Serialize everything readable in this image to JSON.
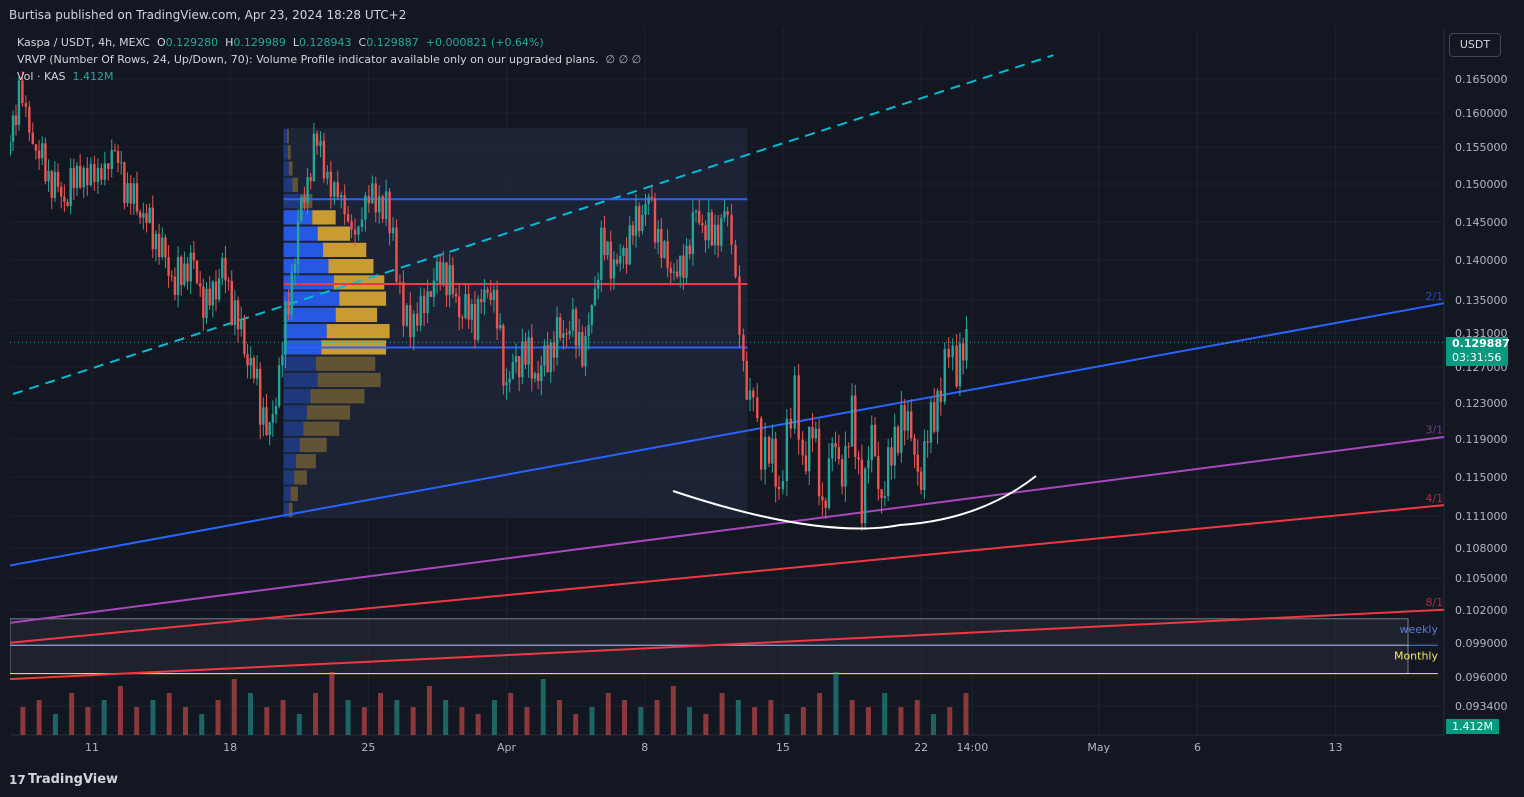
{
  "header": {
    "published": "Burtisa published on TradingView.com, Apr 23, 2024 18:28 UTC+2"
  },
  "legend": {
    "symbol": "Kaspa / USDT, 4h, MEXC",
    "o_label": "O",
    "o": "0.129280",
    "h_label": "H",
    "h": "0.129989",
    "l_label": "L",
    "l": "0.128943",
    "c_label": "C",
    "c": "0.129887",
    "change": "+0.000821 (+0.64%)",
    "vrvp": "VRVP (Number Of Rows, 24, Up/Down, 70): Volume Profile indicator available only on our upgraded plans.",
    "vrvp_values": "∅  ∅  ∅",
    "vol_label": "Vol · KAS",
    "vol_value": "1.412M"
  },
  "currency_button": "USDT",
  "current_price_tag": {
    "price": "0.129887",
    "countdown": "03:31:56"
  },
  "volume_tag": "1.412M",
  "footer": {
    "logo": "17",
    "brand": "TradingView"
  },
  "colors": {
    "background": "#131722",
    "up": "#26a69a",
    "down": "#ef5350",
    "blue_line": "#2962ff",
    "purple_line": "#ab47bc",
    "red_line": "#f23645",
    "cyan_dash": "#00bcd4",
    "vp_blue": "#2962ff",
    "vp_gold": "#e8b033"
  },
  "chart_data": {
    "type": "candlestick",
    "title": "Kaspa / USDT, 4h, MEXC",
    "ylim": [
      0.0915,
      0.1685
    ],
    "y_ticks": [
      "0.165000",
      "0.160000",
      "0.155000",
      "0.150000",
      "0.145000",
      "0.140000",
      "0.135000",
      "0.131000",
      "0.127000",
      "0.123000",
      "0.119000",
      "0.115000",
      "0.111000",
      "0.108000",
      "0.105000",
      "0.102000",
      "0.099000",
      "0.096000",
      "0.093400"
    ],
    "y_tick_values": [
      0.165,
      0.16,
      0.155,
      0.15,
      0.145,
      0.14,
      0.135,
      0.131,
      0.127,
      0.123,
      0.119,
      0.115,
      0.111,
      0.108,
      0.105,
      0.102,
      0.099,
      0.096,
      0.0934
    ],
    "x_ticks": [
      "11",
      "18",
      "25",
      "Apr",
      "8",
      "15",
      "22",
      "14:00",
      "May",
      "6",
      "13"
    ],
    "x_tick_days": [
      11,
      18,
      25,
      32,
      39,
      46,
      53,
      55.6,
      62,
      67,
      74
    ],
    "x_start_day": 6.7,
    "last_day": 55.3,
    "close_series": [
      [
        6.7,
        0.154
      ],
      [
        7.3,
        0.163
      ],
      [
        8.0,
        0.156
      ],
      [
        8.8,
        0.151
      ],
      [
        9.6,
        0.148
      ],
      [
        10.4,
        0.152
      ],
      [
        11.3,
        0.15
      ],
      [
        12.0,
        0.155
      ],
      [
        12.8,
        0.149
      ],
      [
        13.6,
        0.146
      ],
      [
        14.4,
        0.142
      ],
      [
        15.2,
        0.137
      ],
      [
        16.0,
        0.14
      ],
      [
        16.8,
        0.134
      ],
      [
        17.6,
        0.139
      ],
      [
        18.4,
        0.132
      ],
      [
        19.2,
        0.126
      ],
      [
        20.0,
        0.119
      ],
      [
        20.8,
        0.132
      ],
      [
        21.6,
        0.147
      ],
      [
        22.4,
        0.156
      ],
      [
        23.1,
        0.15
      ],
      [
        23.8,
        0.146
      ],
      [
        24.5,
        0.144
      ],
      [
        25.2,
        0.149
      ],
      [
        25.9,
        0.147
      ],
      [
        26.6,
        0.136
      ],
      [
        27.3,
        0.131
      ],
      [
        28.0,
        0.136
      ],
      [
        28.8,
        0.139
      ],
      [
        29.6,
        0.134
      ],
      [
        30.4,
        0.133
      ],
      [
        31.2,
        0.137
      ],
      [
        32.0,
        0.125
      ],
      [
        32.8,
        0.129
      ],
      [
        33.6,
        0.126
      ],
      [
        34.4,
        0.13
      ],
      [
        35.2,
        0.132
      ],
      [
        36.0,
        0.129
      ],
      [
        36.8,
        0.142
      ],
      [
        37.6,
        0.139
      ],
      [
        38.4,
        0.144
      ],
      [
        39.2,
        0.148
      ],
      [
        40.0,
        0.14
      ],
      [
        40.8,
        0.138
      ],
      [
        41.6,
        0.146
      ],
      [
        42.4,
        0.143
      ],
      [
        43.2,
        0.146
      ],
      [
        43.6,
        0.137
      ],
      [
        44.0,
        0.126
      ],
      [
        44.5,
        0.124
      ],
      [
        44.9,
        0.117
      ],
      [
        45.3,
        0.118
      ],
      [
        45.8,
        0.113
      ],
      [
        46.2,
        0.12
      ],
      [
        46.6,
        0.125
      ],
      [
        47.0,
        0.117
      ],
      [
        47.5,
        0.12
      ],
      [
        48.0,
        0.112
      ],
      [
        48.5,
        0.118
      ],
      [
        49.0,
        0.116
      ],
      [
        49.5,
        0.121
      ],
      [
        50.0,
        0.113
      ],
      [
        50.5,
        0.119
      ],
      [
        51.0,
        0.113
      ],
      [
        51.5,
        0.117
      ],
      [
        52.0,
        0.122
      ],
      [
        52.5,
        0.119
      ],
      [
        53.0,
        0.115
      ],
      [
        53.5,
        0.121
      ],
      [
        54.0,
        0.125
      ],
      [
        54.4,
        0.13
      ],
      [
        54.8,
        0.126
      ],
      [
        55.3,
        0.1299
      ]
    ],
    "trend_lines": [
      {
        "name": "2/1",
        "color": "#2962ff",
        "from": [
          6.7,
          0.1062
        ],
        "to": [
          81.5,
          0.1355
        ],
        "label_day": 79.0
      },
      {
        "name": "3/1",
        "color": "#ab47bc",
        "from": [
          6.7,
          0.1008
        ],
        "to": [
          81.5,
          0.1198
        ],
        "label_day": 79.0
      },
      {
        "name": "4/1",
        "color": "#f23645",
        "from": [
          6.7,
          0.099
        ],
        "to": [
          81.5,
          0.1125
        ],
        "label_day": 79.0
      },
      {
        "name": "8/1",
        "color": "#f23645",
        "from": [
          6.7,
          0.0958
        ],
        "to": [
          81.5,
          0.1022
        ],
        "label_day": 79.0
      }
    ],
    "dashed_channel": {
      "color": "#00bcd4",
      "from": [
        7.0,
        0.124
      ],
      "to": [
        59.7,
        0.1685
      ]
    },
    "horizontal_lines": [
      {
        "price": 0.148,
        "color": "#2962ff",
        "from_day": 20.7,
        "to_day": 44.2
      },
      {
        "price": 0.137,
        "color": "#f23645",
        "from_day": 20.7,
        "to_day": 44.2
      },
      {
        "price": 0.1293,
        "color": "#2962ff",
        "from_day": 20.7,
        "to_day": 44.2
      }
    ],
    "zones": [
      {
        "name": "weekly",
        "label": "weekly",
        "low": 0.0988,
        "high": 0.1012,
        "color": "#5b7bd6"
      },
      {
        "name": "Monthly",
        "label": "Monthly",
        "low": 0.0963,
        "high": 0.0988,
        "color": "#f5e663"
      }
    ],
    "volume_profile": {
      "range": [
        0.1108,
        0.1578
      ],
      "rows": 24,
      "up": [
        4,
        5,
        6,
        10,
        20,
        32,
        38,
        44,
        50,
        56,
        62,
        58,
        48,
        42,
        36,
        38,
        30,
        26,
        22,
        18,
        14,
        12,
        8,
        6
      ],
      "down": [
        2,
        3,
        4,
        6,
        12,
        26,
        36,
        48,
        50,
        56,
        52,
        46,
        70,
        72,
        66,
        70,
        60,
        48,
        40,
        30,
        22,
        14,
        8,
        4
      ]
    },
    "volume": [
      3,
      4,
      5,
      3,
      6,
      4,
      5,
      7,
      4,
      5,
      6,
      4,
      3,
      5,
      8,
      6,
      4,
      5,
      3,
      6,
      9,
      5,
      4,
      6,
      5,
      4,
      7,
      5,
      4,
      3,
      5,
      6,
      4,
      8,
      5,
      3,
      4,
      6,
      5,
      4,
      5,
      7,
      4,
      3,
      6,
      5,
      4,
      5,
      3,
      4,
      6,
      9,
      5,
      4,
      6,
      4,
      5,
      3,
      4,
      6
    ],
    "xlabel": "",
    "ylabel": ""
  }
}
